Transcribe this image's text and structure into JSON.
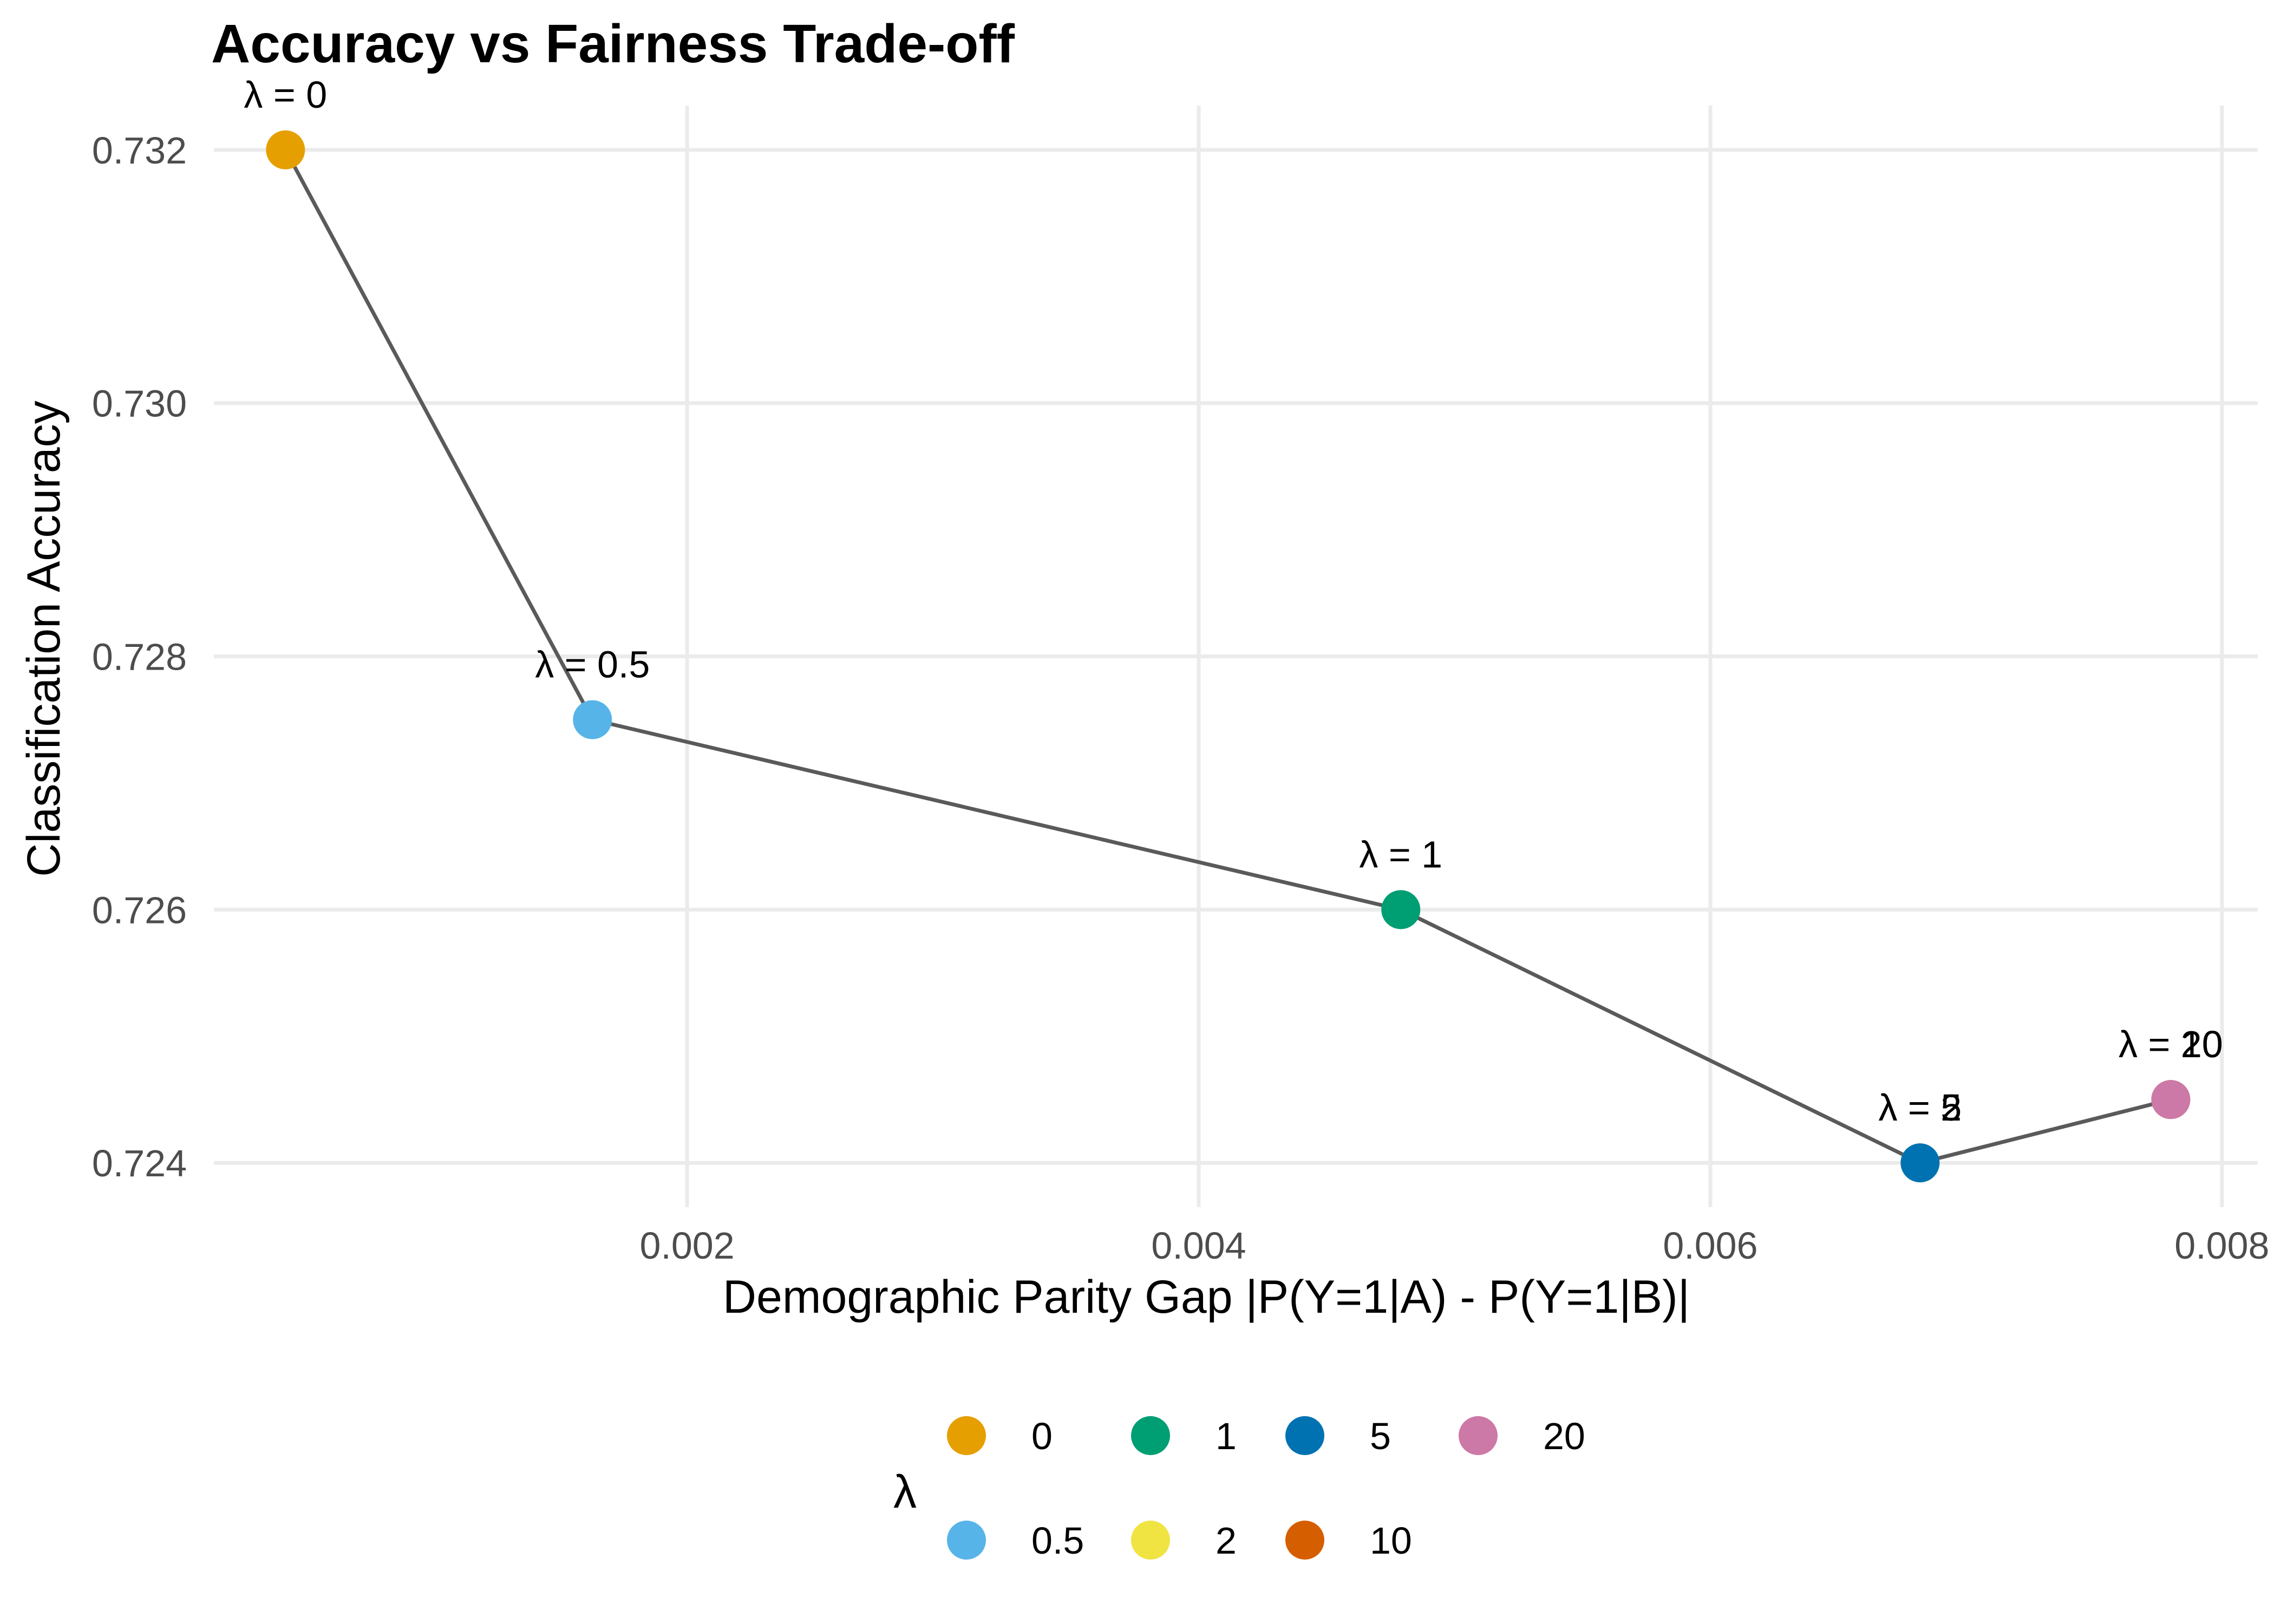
{
  "chart_data": {
    "type": "scatter",
    "title": "Accuracy vs Fairness Trade-off",
    "xlabel": "Demographic Parity Gap  |P(Y=1|A) - P(Y=1|B)|",
    "ylabel": "Classification Accuracy",
    "xlim": [
      0.00015,
      0.00814
    ],
    "ylim": [
      0.72365,
      0.73235
    ],
    "x_ticks": [
      0.002,
      0.004,
      0.006,
      0.008
    ],
    "x_tick_labels": [
      "0.002",
      "0.004",
      "0.006",
      "0.008"
    ],
    "y_ticks": [
      0.724,
      0.726,
      0.728,
      0.73,
      0.732
    ],
    "y_tick_labels": [
      "0.724",
      "0.726",
      "0.728",
      "0.730",
      "0.732"
    ],
    "grid": true,
    "connecting_line": true,
    "legend": {
      "title": "λ",
      "placement": "bottom",
      "entries": [
        {
          "label": "0",
          "color": "#E69F00"
        },
        {
          "label": "0.5",
          "color": "#56B4E9"
        },
        {
          "label": "1",
          "color": "#009E73"
        },
        {
          "label": "2",
          "color": "#F0E442"
        },
        {
          "label": "5",
          "color": "#0072B2"
        },
        {
          "label": "10",
          "color": "#D55E00"
        },
        {
          "label": "20",
          "color": "#CC79A7"
        }
      ]
    },
    "points": [
      {
        "lambda": "0",
        "x": 0.00043,
        "y": 0.732,
        "label": "λ = 0",
        "color": "#E69F00"
      },
      {
        "lambda": "0.5",
        "x": 0.00163,
        "y": 0.7275,
        "label": "λ = 0.5",
        "color": "#56B4E9"
      },
      {
        "lambda": "1",
        "x": 0.00479,
        "y": 0.726,
        "label": "λ = 1",
        "color": "#009E73"
      },
      {
        "lambda": "2",
        "x": 0.00682,
        "y": 0.724,
        "label": "λ = 2",
        "color": "#F0E442"
      },
      {
        "lambda": "5",
        "x": 0.00682,
        "y": 0.724,
        "label": "λ = 5",
        "color": "#0072B2"
      },
      {
        "lambda": "10",
        "x": 0.0078,
        "y": 0.7245,
        "label": "λ = 10",
        "color": "#D55E00"
      },
      {
        "lambda": "20",
        "x": 0.0078,
        "y": 0.7245,
        "label": "λ = 20",
        "color": "#CC79A7"
      }
    ],
    "line_color": "#5a5a5a",
    "grid_color": "#ebebeb"
  }
}
